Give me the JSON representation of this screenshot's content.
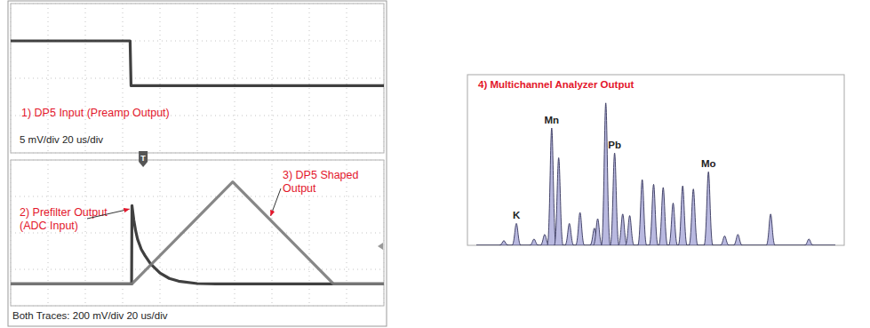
{
  "chart_data": [
    {
      "type": "line",
      "title": "1) DP5 Input (Preamp Output)",
      "subtitle": "5 mV/div  20 us/div",
      "xlim": [
        0,
        200
      ],
      "ylim": [
        -10,
        10
      ],
      "xticks": [
        0,
        20,
        40,
        60,
        80,
        100,
        120,
        140,
        160,
        180,
        200
      ],
      "yticks": [
        -10,
        -5,
        0,
        5,
        10
      ],
      "grid": true,
      "tick_labels": false,
      "annotations": [
        {
          "text": "T",
          "x": 71
        }
      ],
      "series": [
        {
          "color": "#2b2b2b",
          "x": [
            0,
            64,
            64.5,
            200
          ],
          "values": [
            5,
            5,
            -1,
            -1
          ]
        }
      ]
    },
    {
      "type": "line",
      "subtitle": "Both Traces: 200 mV/div  20 us/div",
      "xlim": [
        0,
        200
      ],
      "ylim": [
        -200,
        600
      ],
      "xticks": [
        0,
        20,
        40,
        60,
        80,
        100,
        120,
        140,
        160,
        180,
        200
      ],
      "yticks": [
        -200,
        0,
        200,
        400,
        600
      ],
      "grid": true,
      "tick_labels": false,
      "series": [
        {
          "label": [
            "2) Prefilter Output",
            "(ADC Input)"
          ],
          "color": "#2b2b2b",
          "x": [
            0,
            64.8,
            65,
            66,
            67,
            68,
            70,
            72,
            75,
            80,
            85,
            90,
            100,
            110,
            200
          ],
          "values": [
            -80,
            -80,
            350,
            270,
            210,
            165,
            110,
            75,
            30,
            -20,
            -50,
            -65,
            -78,
            -80,
            -80
          ]
        },
        {
          "label": [
            "3) DP5 Shaped",
            "Output"
          ],
          "color": "#7a7a7a",
          "x": [
            0,
            65,
            119,
            173,
            200
          ],
          "values": [
            -80,
            -80,
            480,
            -80,
            -80
          ]
        }
      ]
    },
    {
      "type": "peaks",
      "title": "4) Multichannel Analyzer Output",
      "xlim": [
        0,
        1024
      ],
      "ylim": [
        0,
        100
      ],
      "tick_labels": false,
      "color": "#b9b9e0",
      "x": [
        99,
        133,
        181,
        210,
        229,
        248,
        277,
        306,
        345,
        354,
        376,
        400,
        422,
        441,
        475,
        506,
        532,
        559,
        585,
        614,
        655,
        699,
        735,
        824,
        928
      ],
      "values": [
        3,
        14,
        4,
        7,
        75,
        56,
        14,
        21,
        11,
        17,
        91,
        59,
        20,
        19,
        42,
        39,
        37,
        27,
        38,
        36,
        47,
        6,
        7,
        20,
        4
      ],
      "annotations": [
        {
          "text": "K",
          "x": 133,
          "y": 14
        },
        {
          "text": "Mn",
          "x": 229,
          "y": 75
        },
        {
          "text": "Pb",
          "x": 400,
          "y": 59
        },
        {
          "text": "Mo",
          "x": 655,
          "y": 47
        }
      ]
    }
  ]
}
